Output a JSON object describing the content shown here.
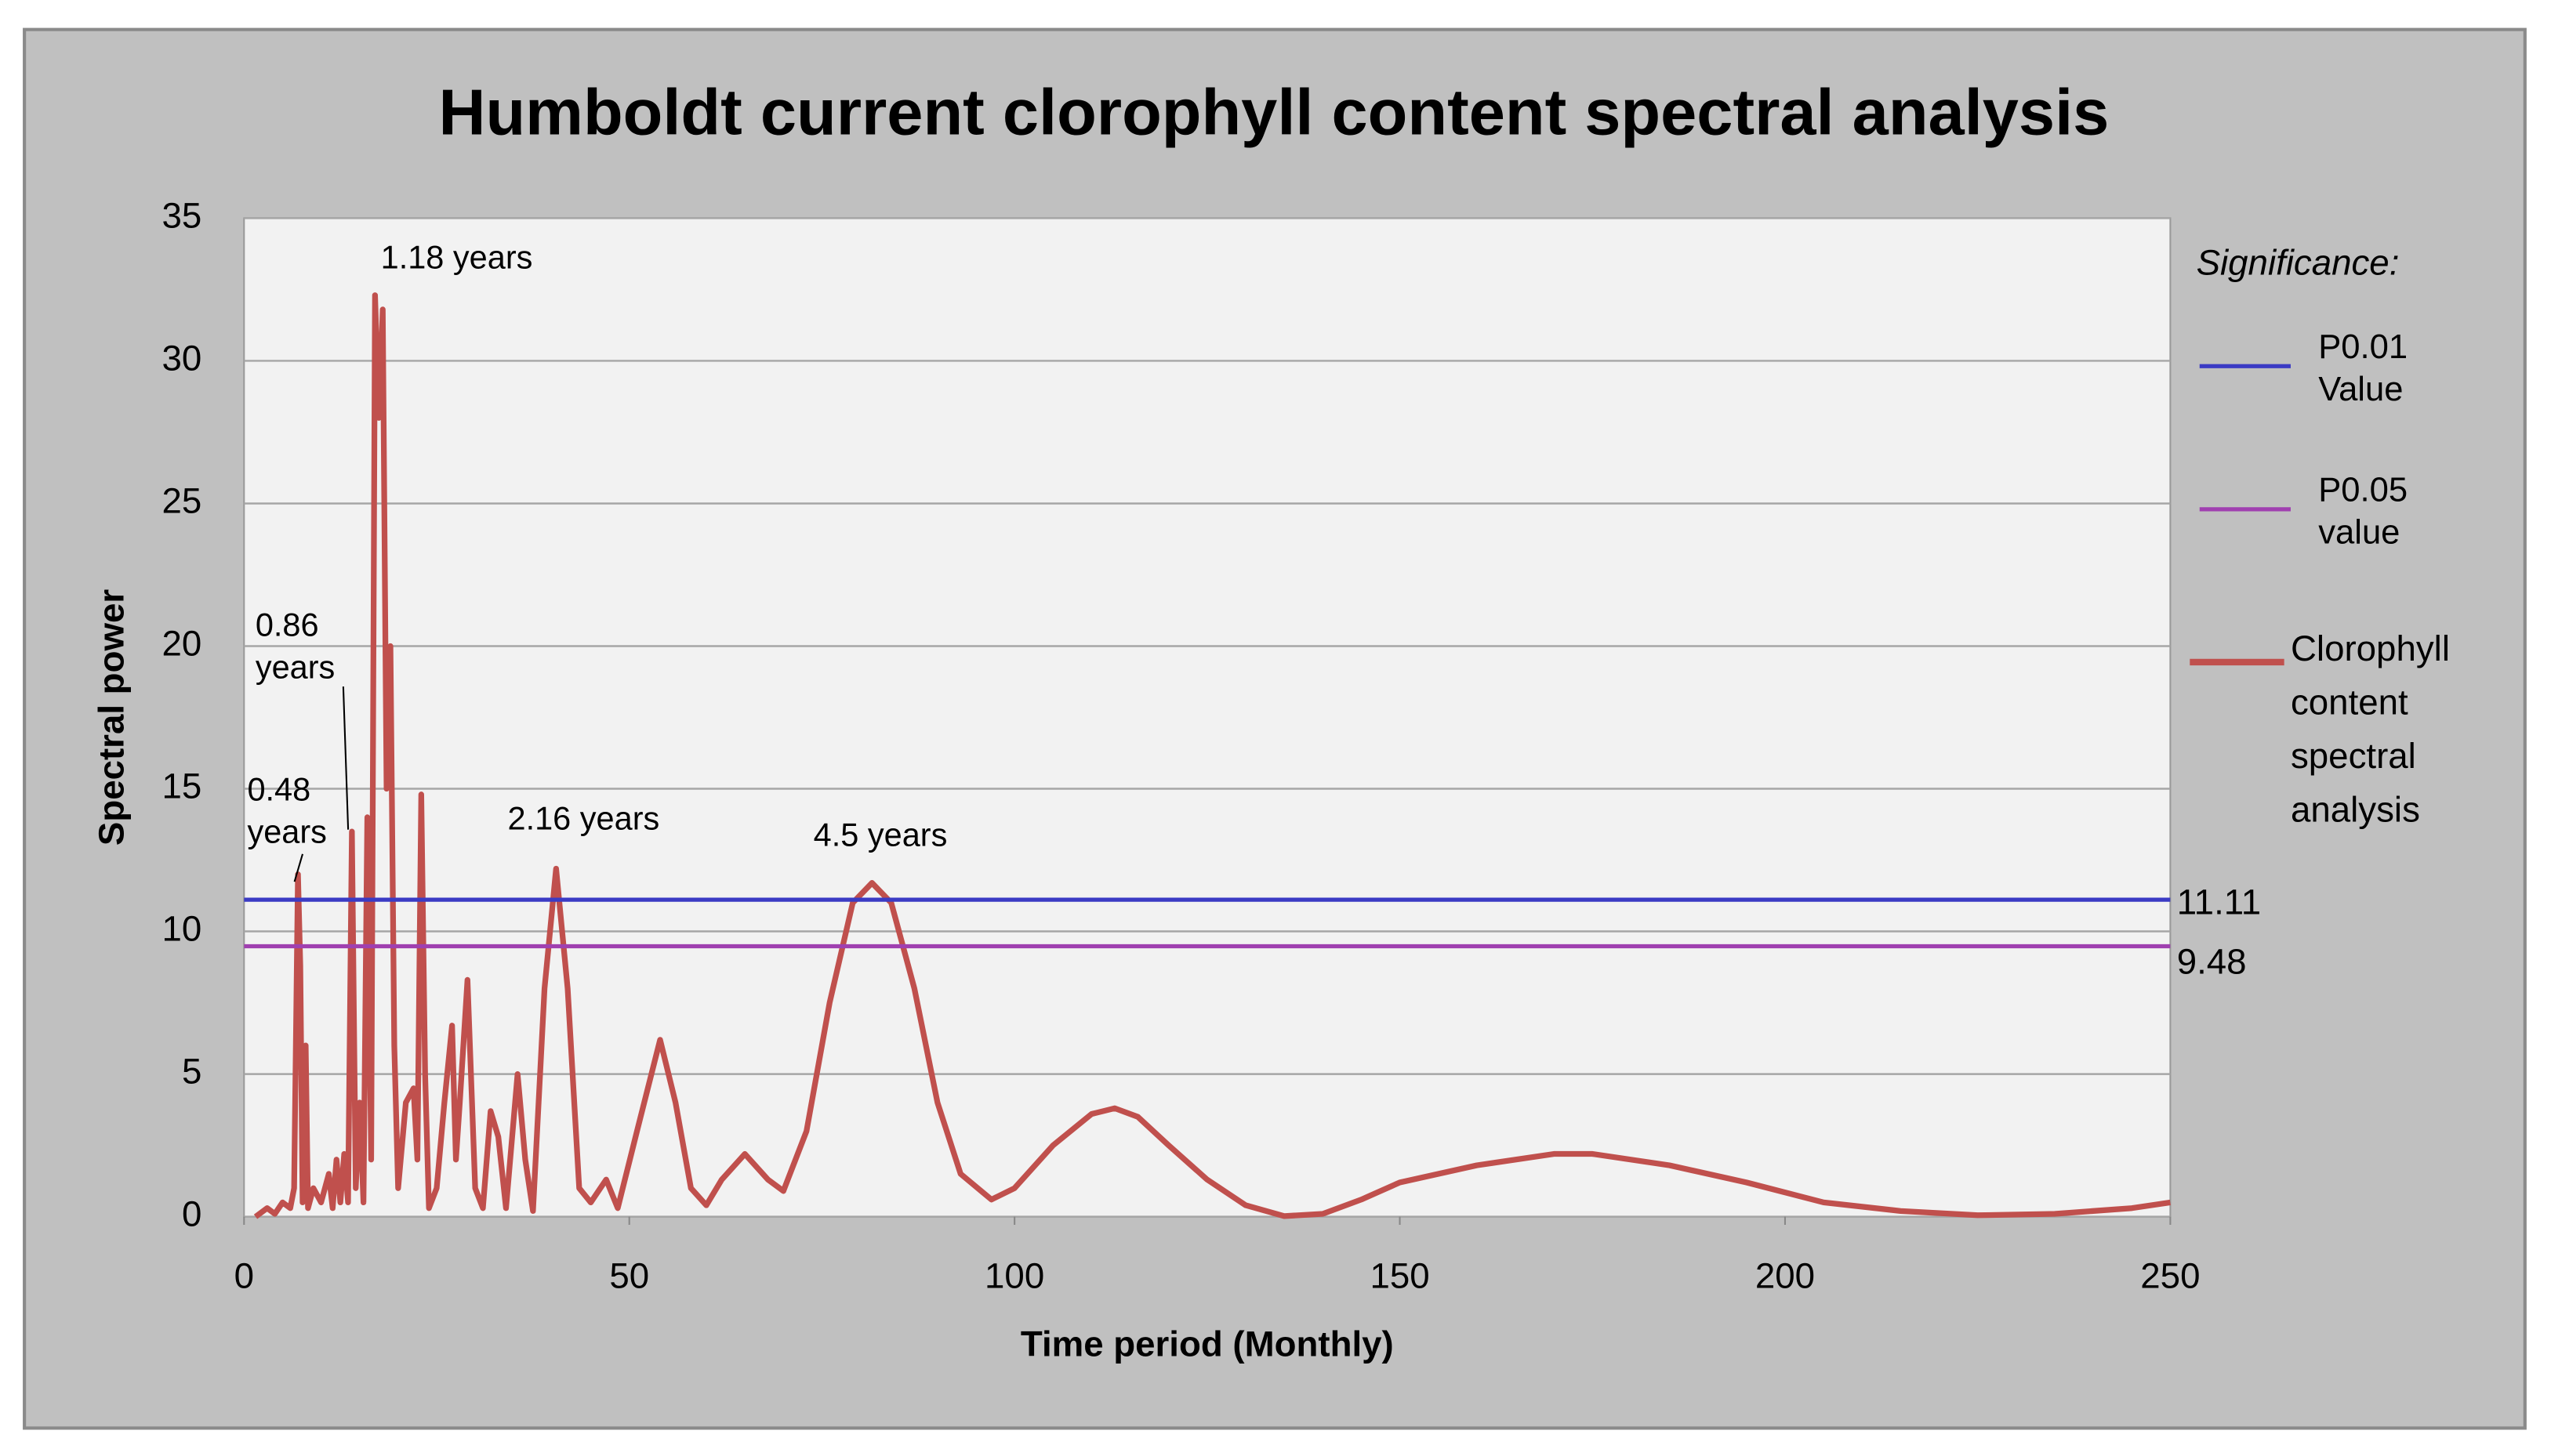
{
  "chart_data": {
    "type": "line",
    "title": "Humboldt current clorophyll content   spectral analysis",
    "x_label": "Time period (Monthly)",
    "y_label": "Spectral power",
    "xlim": [
      0,
      250
    ],
    "ylim": [
      0,
      35
    ],
    "xticks": [
      0,
      50,
      100,
      150,
      200,
      250
    ],
    "yticks": [
      0,
      5,
      10,
      15,
      20,
      25,
      30,
      35
    ],
    "grid": true,
    "legend_title": "Significance:",
    "legend_position": "right",
    "reference_lines": [
      {
        "name": "P0.01 Value",
        "color": "#3b3bc4",
        "value": 11.11
      },
      {
        "name": "P0.05 value",
        "color": "#a040b0",
        "value": 9.48
      }
    ],
    "series": [
      {
        "name": "Clorophyll content spectral analysis",
        "color": "#c0504d",
        "x": [
          1.5,
          3,
          4,
          5,
          6,
          6.5,
          7,
          7.3,
          7.6,
          8,
          8.3,
          9,
          10,
          11,
          11.5,
          12,
          12.5,
          13,
          13.5,
          14,
          14.5,
          15,
          15.5,
          16,
          16.5,
          17,
          17.5,
          18,
          18.5,
          19,
          19.5,
          20,
          21,
          22,
          22.5,
          23,
          23.5,
          24,
          25,
          26,
          27,
          27.5,
          28,
          29,
          30,
          31,
          32,
          33,
          34,
          35.5,
          36.5,
          37.5,
          39,
          40.5,
          42,
          43.5,
          45,
          47,
          48.5,
          51,
          54,
          56,
          58,
          60,
          62,
          65,
          68,
          70,
          73,
          76,
          79,
          81.5,
          84,
          87,
          90,
          93,
          97,
          100,
          105,
          110,
          113,
          116,
          120,
          125,
          130,
          135,
          140,
          145,
          150,
          160,
          170,
          175,
          185,
          195,
          205,
          215,
          225,
          235,
          245,
          250
        ],
        "values": [
          0,
          0.3,
          0.1,
          0.5,
          0.3,
          1,
          12,
          8.8,
          0.5,
          6,
          0.3,
          1,
          0.5,
          1.5,
          0.3,
          2,
          0.5,
          2.2,
          0.5,
          13.5,
          1,
          4,
          0.5,
          14,
          2,
          32.3,
          28,
          31.8,
          15,
          20,
          6,
          1,
          4,
          4.5,
          2,
          14.8,
          5,
          0.3,
          1,
          4,
          6.7,
          2,
          4,
          8.3,
          1,
          0.3,
          3.7,
          2.8,
          0.3,
          5,
          2,
          0.2,
          8,
          12.2,
          8,
          1,
          0.5,
          1.3,
          0.3,
          3,
          6.2,
          4,
          1,
          0.4,
          1.3,
          2.2,
          1.3,
          0.9,
          3,
          7.5,
          11,
          11.7,
          11,
          8,
          4,
          1.5,
          0.6,
          1,
          2.5,
          3.6,
          3.8,
          3.5,
          2.5,
          1.3,
          0.4,
          0.02,
          0.1,
          0.6,
          1.2,
          1.8,
          2.2,
          2.2,
          1.8,
          1.2,
          0.5,
          0.2,
          0.05,
          0.1,
          0.3,
          0.5
        ]
      }
    ],
    "annotations": [
      "1.18 years",
      "0.86 years",
      "0.48 years",
      "2.16 years",
      "4.5 years"
    ]
  }
}
